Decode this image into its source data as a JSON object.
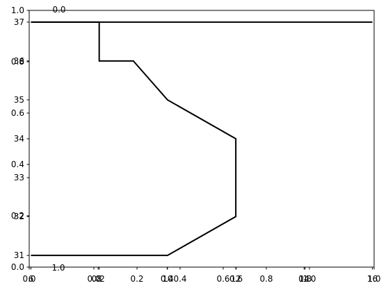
{
  "chart_data": {
    "type": "line",
    "title": "",
    "xlabel": "",
    "ylabel": "",
    "grid": false,
    "legend": "none",
    "colors": {
      "line": "#000000",
      "axes": "#000000",
      "background": "#ffffff"
    },
    "series": [
      {
        "x": [
          6,
          8,
          8,
          9,
          10,
          12,
          12,
          10,
          6
        ],
        "y": [
          37,
          37,
          36,
          36,
          35,
          34,
          32,
          31,
          31
        ]
      },
      {
        "x": [
          6,
          16
        ],
        "y": [
          37,
          37
        ]
      }
    ],
    "main_axis": {
      "xlim": [
        5.95,
        16.05
      ],
      "ylim": [
        30.7,
        37.3
      ],
      "xticks": [
        6,
        8,
        10,
        12,
        14,
        16
      ],
      "yticks": [
        31,
        32,
        33,
        34,
        35,
        36,
        37
      ]
    },
    "overlay_axes": [
      {
        "xlim": [
          0,
          1
        ],
        "ylim": [
          0,
          1
        ],
        "xticks": [
          "0.0",
          "0.2",
          "0.4",
          "0.6",
          "0.8",
          "1.0"
        ],
        "yticks": [
          "0.0",
          "0.2",
          "0.4",
          "0.6",
          "0.8",
          "1.0"
        ]
      },
      {
        "xlim": [
          -0.3,
          1.3
        ],
        "xticks": [
          "0.0",
          "0.2",
          "0.4",
          "0.6",
          "0.8",
          "1.0"
        ]
      }
    ],
    "top_labels": [
      "0.0"
    ],
    "inner_labels": [
      "1.0"
    ]
  }
}
